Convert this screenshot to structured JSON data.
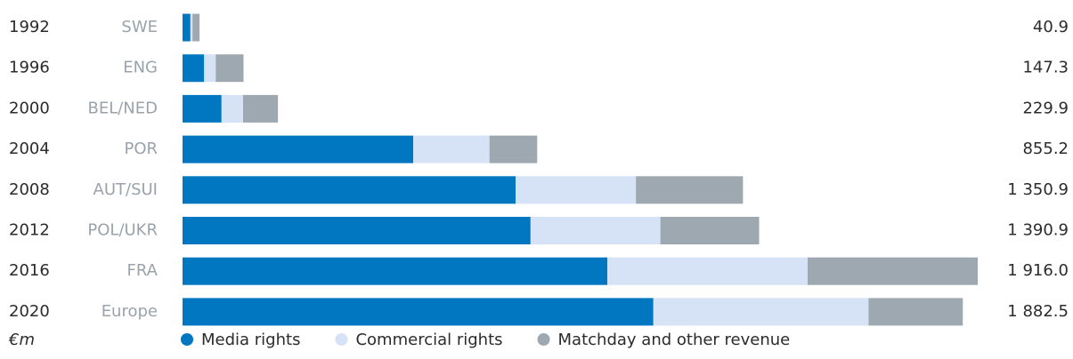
{
  "chart_data": {
    "type": "bar",
    "orientation": "horizontal",
    "stacked": true,
    "categories": [
      "1992",
      "1996",
      "2000",
      "2004",
      "2008",
      "2012",
      "2016",
      "2020"
    ],
    "hosts": [
      "SWE",
      "ENG",
      "BEL/NED",
      "POR",
      "AUT/SUI",
      "POL/UKR",
      "FRA",
      "Europe"
    ],
    "total_labels": [
      "40.9",
      "147.3",
      "229.9",
      "855.2",
      "1 350.9",
      "1 390.9",
      "1 916.0",
      "1 882.5"
    ],
    "unit": "€m",
    "series": [
      {
        "name": "Media rights",
        "color": "#0077c0",
        "values": [
          19,
          52,
          94,
          556,
          803,
          839,
          1024,
          1135
        ]
      },
      {
        "name": "Commercial rights",
        "color": "#d6e2f5",
        "values": [
          5,
          28,
          52,
          184,
          290,
          313,
          483,
          519
        ]
      },
      {
        "name": "Matchday and other revenue",
        "color": "#9ea8b0",
        "values": [
          17,
          67,
          84,
          115,
          258,
          238,
          410,
          227
        ]
      }
    ]
  }
}
